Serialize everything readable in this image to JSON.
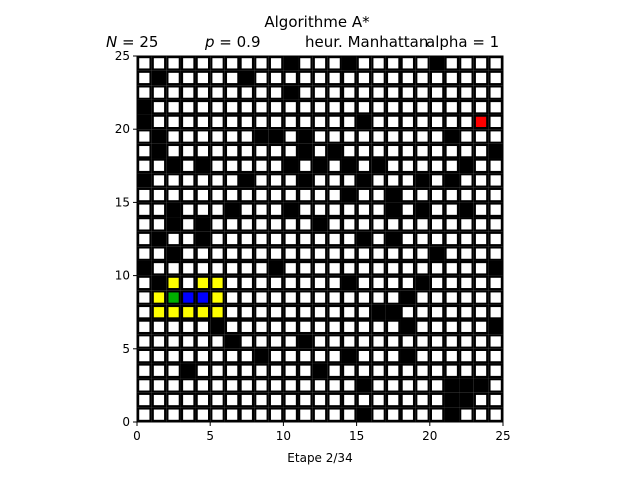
{
  "header": {
    "title": "Algorithme A*",
    "n_label": "N",
    "n_value": " = 25",
    "p_label": "p",
    "p_value": " = 0.9",
    "heuristic": "heur. Manhattan",
    "alpha": "alpha = 1"
  },
  "footer": {
    "step_label": "Etape 2/34"
  },
  "grid": {
    "size": 25,
    "xlim": [
      0,
      25
    ],
    "ylim": [
      0,
      25
    ],
    "x_ticks": [
      0,
      5,
      10,
      15,
      20,
      25
    ],
    "y_ticks": [
      0,
      5,
      10,
      15,
      20,
      25
    ],
    "colors": {
      "empty": "#ffffff",
      "wall": "#000000",
      "open": "#ffff00",
      "closed": "#0000ff",
      "start": "#00b000",
      "goal": "#ff0000",
      "cell_border": "#000000"
    },
    "walls": [
      [
        10,
        24
      ],
      [
        14,
        24
      ],
      [
        20,
        24
      ],
      [
        1,
        23
      ],
      [
        7,
        23
      ],
      [
        10,
        22
      ],
      [
        0,
        21
      ],
      [
        0,
        20
      ],
      [
        15,
        20
      ],
      [
        1,
        19
      ],
      [
        8,
        19
      ],
      [
        9,
        19
      ],
      [
        11,
        19
      ],
      [
        21,
        19
      ],
      [
        1,
        18
      ],
      [
        11,
        18
      ],
      [
        13,
        18
      ],
      [
        24,
        18
      ],
      [
        2,
        17
      ],
      [
        4,
        17
      ],
      [
        10,
        17
      ],
      [
        12,
        17
      ],
      [
        14,
        17
      ],
      [
        16,
        17
      ],
      [
        22,
        17
      ],
      [
        0,
        16
      ],
      [
        7,
        16
      ],
      [
        11,
        16
      ],
      [
        15,
        16
      ],
      [
        19,
        16
      ],
      [
        21,
        16
      ],
      [
        14,
        15
      ],
      [
        17,
        15
      ],
      [
        2,
        14
      ],
      [
        6,
        14
      ],
      [
        10,
        14
      ],
      [
        17,
        14
      ],
      [
        19,
        14
      ],
      [
        22,
        14
      ],
      [
        2,
        13
      ],
      [
        4,
        13
      ],
      [
        12,
        13
      ],
      [
        1,
        12
      ],
      [
        4,
        12
      ],
      [
        15,
        12
      ],
      [
        17,
        12
      ],
      [
        2,
        11
      ],
      [
        20,
        11
      ],
      [
        0,
        10
      ],
      [
        9,
        10
      ],
      [
        24,
        10
      ],
      [
        1,
        9
      ],
      [
        14,
        9
      ],
      [
        19,
        9
      ],
      [
        18,
        8
      ],
      [
        16,
        7
      ],
      [
        17,
        7
      ],
      [
        5,
        6
      ],
      [
        18,
        6
      ],
      [
        24,
        6
      ],
      [
        6,
        5
      ],
      [
        11,
        5
      ],
      [
        8,
        4
      ],
      [
        14,
        4
      ],
      [
        18,
        4
      ],
      [
        3,
        3
      ],
      [
        12,
        3
      ],
      [
        15,
        2
      ],
      [
        21,
        2
      ],
      [
        22,
        2
      ],
      [
        23,
        2
      ],
      [
        21,
        1
      ],
      [
        22,
        1
      ],
      [
        15,
        0
      ],
      [
        21,
        0
      ]
    ],
    "open_cells": [
      [
        2,
        9
      ],
      [
        4,
        9
      ],
      [
        5,
        9
      ],
      [
        1,
        8
      ],
      [
        5,
        8
      ],
      [
        1,
        7
      ],
      [
        2,
        7
      ],
      [
        3,
        7
      ],
      [
        4,
        7
      ],
      [
        5,
        7
      ]
    ],
    "closed_cells": [
      [
        3,
        8
      ],
      [
        4,
        8
      ]
    ],
    "start_cell": [
      2,
      8
    ],
    "goal_cell": [
      23,
      20
    ]
  }
}
